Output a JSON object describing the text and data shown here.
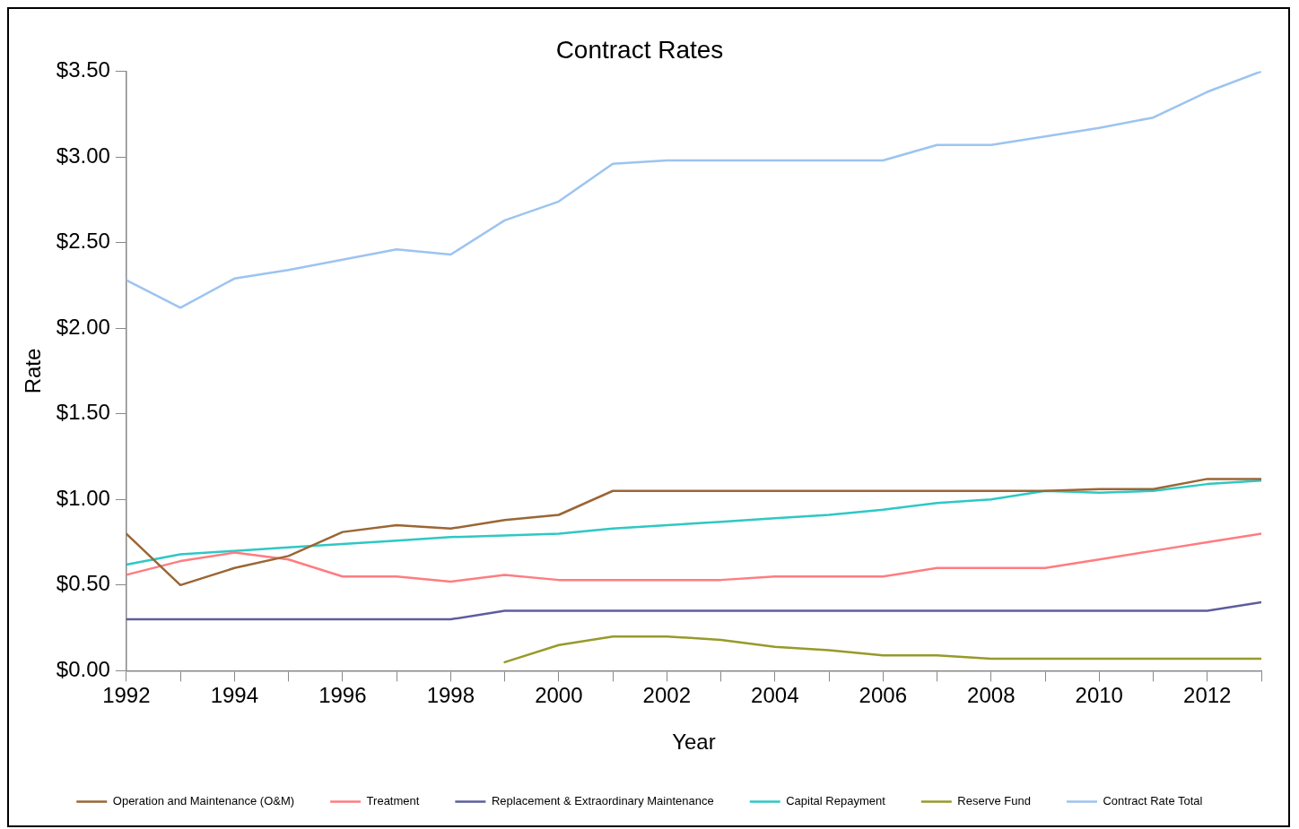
{
  "chart_data": {
    "type": "line",
    "title": "Contract Rates",
    "xlabel": "Year",
    "ylabel": "Rate",
    "x": [
      1992,
      1993,
      1994,
      1995,
      1996,
      1997,
      1998,
      1999,
      2000,
      2001,
      2002,
      2003,
      2004,
      2005,
      2006,
      2007,
      2008,
      2009,
      2010,
      2011,
      2012,
      2013
    ],
    "xlim": [
      1992,
      2013
    ],
    "xticks": [
      1992,
      {
        "value": 1993,
        "label": null
      },
      1994,
      {
        "value": 1995,
        "label": null
      },
      1996,
      {
        "value": 1997,
        "label": null
      },
      1998,
      {
        "value": 1999,
        "label": null
      },
      2000,
      {
        "value": 2001,
        "label": null
      },
      2002,
      {
        "value": 2003,
        "label": null
      },
      2004,
      {
        "value": 2005,
        "label": null
      },
      2006,
      {
        "value": 2007,
        "label": null
      },
      2008,
      {
        "value": 2009,
        "label": null
      },
      2010,
      {
        "value": 2011,
        "label": null
      },
      2012,
      {
        "value": 2013,
        "label": null
      }
    ],
    "ylim": [
      0,
      3.5
    ],
    "yticks": [
      {
        "value": 0,
        "label": "$0.00"
      },
      {
        "value": 0.5,
        "label": "$0.50"
      },
      {
        "value": 1,
        "label": "$1.00"
      },
      {
        "value": 1.5,
        "label": "$1.50"
      },
      {
        "value": 2,
        "label": "$2.00"
      },
      {
        "value": 2.5,
        "label": "$2.50"
      },
      {
        "value": 3,
        "label": "$3.00"
      },
      {
        "value": 3.5,
        "label": "$3.50"
      }
    ],
    "grid": false,
    "legend": "bottom",
    "marker": "none",
    "line_style": "solid",
    "series": [
      {
        "name": "Operation and Maintenance (O&M)",
        "color": "#9a6634",
        "values": [
          0.8,
          0.5,
          0.6,
          0.67,
          0.81,
          0.85,
          0.83,
          0.88,
          0.91,
          1.05,
          1.05,
          1.05,
          1.05,
          1.05,
          1.05,
          1.05,
          1.05,
          1.05,
          1.06,
          1.06,
          1.12,
          1.12
        ]
      },
      {
        "name": "Treatment",
        "color": "#ff7c80",
        "values": [
          0.56,
          0.64,
          0.69,
          0.65,
          0.55,
          0.55,
          0.52,
          0.56,
          0.53,
          0.53,
          0.53,
          0.53,
          0.55,
          0.55,
          0.55,
          0.6,
          0.6,
          0.6,
          0.65,
          0.7,
          0.75,
          0.8
        ]
      },
      {
        "name": "Replacement & Extraordinary Maintenance",
        "color": "#5d5d9e",
        "values": [
          0.3,
          0.3,
          0.3,
          0.3,
          0.3,
          0.3,
          0.3,
          0.35,
          0.35,
          0.35,
          0.35,
          0.35,
          0.35,
          0.35,
          0.35,
          0.35,
          0.35,
          0.35,
          0.35,
          0.35,
          0.35,
          0.4
        ]
      },
      {
        "name": "Capital Repayment",
        "color": "#2ec8c4",
        "values": [
          0.62,
          0.68,
          0.7,
          0.72,
          0.74,
          0.76,
          0.78,
          0.79,
          0.8,
          0.83,
          0.85,
          0.87,
          0.89,
          0.91,
          0.94,
          0.98,
          1.0,
          1.05,
          1.04,
          1.05,
          1.09,
          1.11
        ]
      },
      {
        "name": "Reserve Fund",
        "color": "#979a2a",
        "values": [
          null,
          null,
          null,
          null,
          null,
          null,
          null,
          0.05,
          0.15,
          0.2,
          0.2,
          0.18,
          0.14,
          0.12,
          0.09,
          0.09,
          0.07,
          0.07,
          0.07,
          0.07,
          0.07,
          0.07
        ]
      },
      {
        "name": "Contract Rate Total",
        "color": "#9cc4f0",
        "values": [
          2.28,
          2.12,
          2.29,
          2.34,
          2.4,
          2.46,
          2.43,
          2.63,
          2.74,
          2.96,
          2.98,
          2.98,
          2.98,
          2.98,
          2.98,
          3.07,
          3.07,
          3.12,
          3.17,
          3.23,
          3.38,
          3.5
        ]
      }
    ]
  }
}
